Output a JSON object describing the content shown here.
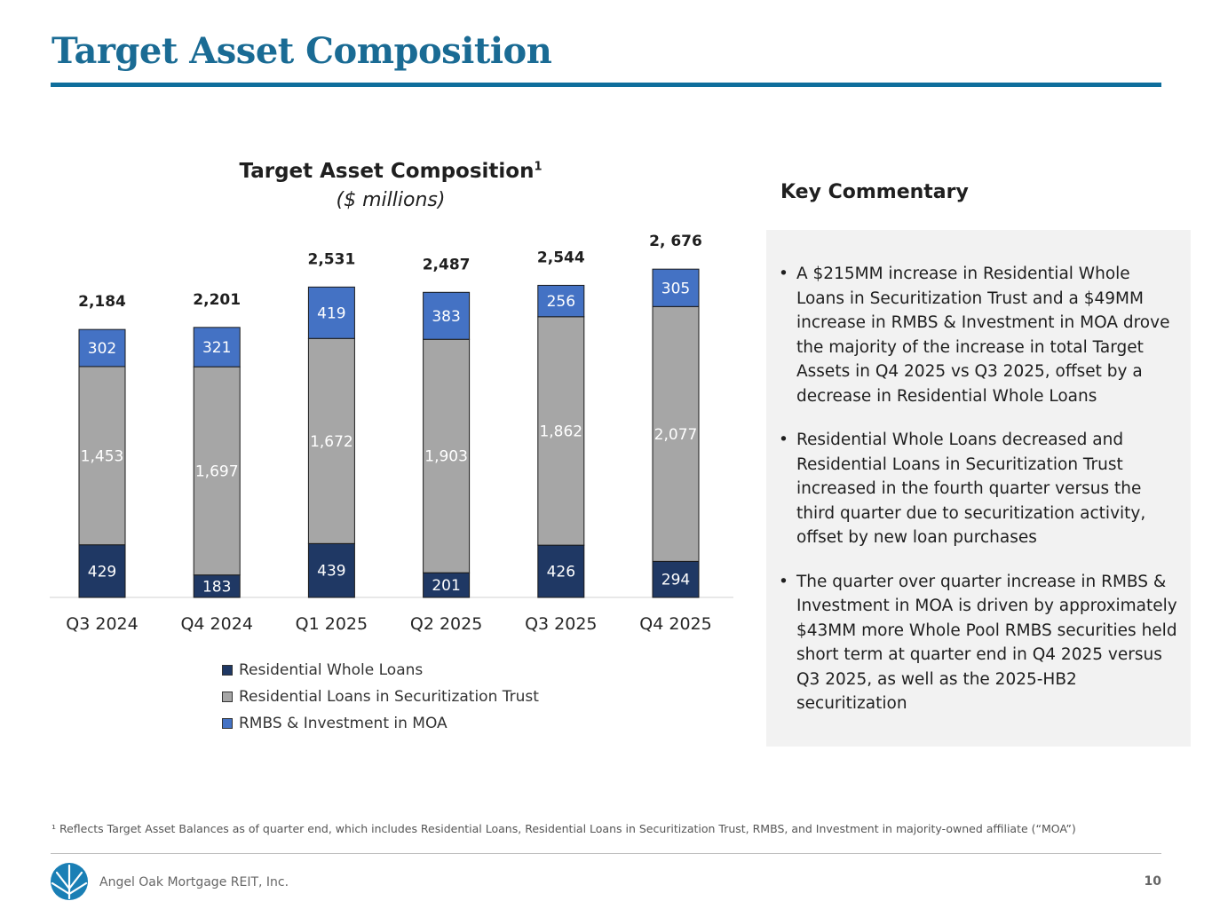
{
  "page": {
    "title": "Target Asset Composition",
    "company": "Angel Oak Mortgage REIT, Inc.",
    "page_number": "10",
    "footnote": "¹ Reflects Target Asset Balances as of quarter end, which includes Residential Loans, Residential Loans in Securitization Trust, RMBS, and Investment in majority-owned affiliate (“MOA”)"
  },
  "commentary": {
    "title": "Key Commentary",
    "bullet_glyph": "•",
    "bullets": [
      "A $215MM increase in Residential Whole Loans in Securitization Trust and a $49MM increase in  RMBS & Investment in MOA drove the majority of the increase in total Target Assets in Q4 2025 vs Q3 2025, offset by a decrease in Residential Whole Loans",
      "Residential Whole Loans decreased and Residential Loans in Securitization Trust increased in the fourth quarter versus the third quarter due to securitization activity, offset by new loan purchases",
      "The quarter over quarter increase in RMBS & Investment in MOA is driven by approximately $43MM more Whole Pool RMBS securities held short term at quarter end in Q4 2025 versus Q3 2025, as well as the 2025-HB2 securitization"
    ]
  },
  "chart_data": {
    "type": "bar",
    "stacked": true,
    "title": "Target Asset Composition",
    "title_superscript": "1",
    "subtitle": "($ millions)",
    "categories": [
      "Q3 2024",
      "Q4 2024",
      "Q1 2025",
      "Q2 2025",
      "Q3 2025",
      "Q4 2025"
    ],
    "series": [
      {
        "name": "Residential Whole Loans",
        "color": "#1f3864",
        "label_color": "#ffffff",
        "values": [
          429,
          183,
          439,
          201,
          426,
          294
        ],
        "labels": [
          "429",
          "183",
          "439",
          "201",
          "426",
          "294"
        ]
      },
      {
        "name": "Residential Loans in Securitization Trust",
        "color": "#a6a6a6",
        "label_color": "#ffffff",
        "values": [
          1453,
          1697,
          1672,
          1903,
          1862,
          2077
        ],
        "labels": [
          "1,453",
          "1,697",
          "1,672",
          "1,903",
          "1,862",
          "2,077"
        ]
      },
      {
        "name": "RMBS & Investment in MOA",
        "color": "#4472c4",
        "label_color": "#ffffff",
        "values": [
          302,
          321,
          419,
          383,
          256,
          305
        ],
        "labels": [
          "302",
          "321",
          "419",
          "383",
          "256",
          "305"
        ]
      }
    ],
    "totals": [
      "2,184",
      "2,201",
      "2,531",
      "2,487",
      "2,544",
      "2, 676"
    ],
    "ylim": [
      0,
      2800
    ],
    "legend_position": "bottom"
  }
}
